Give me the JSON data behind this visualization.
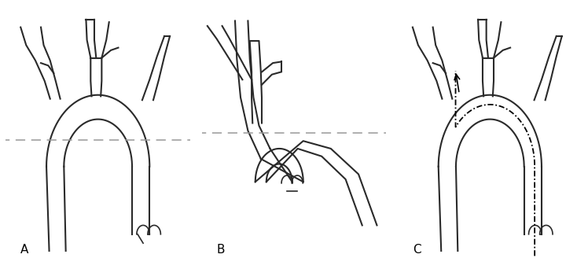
{
  "background_color": "#ffffff",
  "line_color": "#2a2a2a",
  "dashed_line_color": "#999999",
  "label_fontsize": 11,
  "lw": 1.5,
  "lw_thin": 1.2,
  "fig_width": 7.48,
  "fig_height": 3.42,
  "panels": [
    "A",
    "B",
    "C"
  ]
}
